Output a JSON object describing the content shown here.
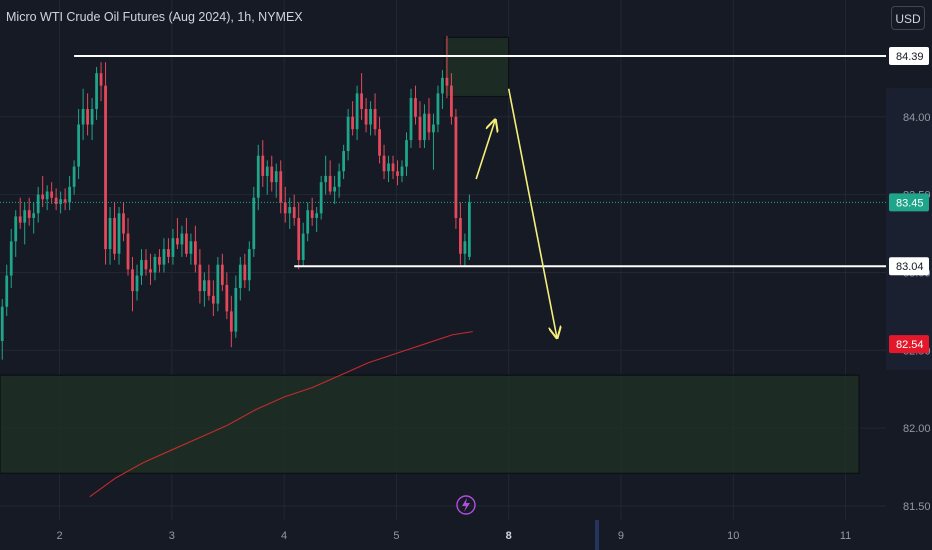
{
  "title": "Micro WTI Crude Oil Futures (Aug 2024), 1h, NYMEX",
  "currency_button": "USD",
  "chart_data": {
    "type": "candlestick",
    "x_ticks": [
      {
        "label": "2",
        "day": 2,
        "bold": false
      },
      {
        "label": "3",
        "day": 3,
        "bold": false
      },
      {
        "label": "4",
        "day": 4,
        "bold": false
      },
      {
        "label": "5",
        "day": 5,
        "bold": false
      },
      {
        "label": "8",
        "day": 6,
        "bold": true
      },
      {
        "label": "9",
        "day": 7,
        "bold": false
      },
      {
        "label": "10",
        "day": 8,
        "bold": false
      },
      {
        "label": "11",
        "day": 9,
        "bold": false
      }
    ],
    "y_ticks": [
      84.0,
      83.5,
      83.0,
      82.5,
      82.0,
      81.5
    ],
    "ylim": [
      81.41,
      84.75
    ],
    "xlim": [
      1.47,
      9.36
    ],
    "price_labels": [
      {
        "value": 84.39,
        "text": "84.39",
        "style": "white"
      },
      {
        "value": 83.45,
        "text": "83.45",
        "style": "green"
      },
      {
        "value": 83.04,
        "text": "83.04",
        "style": "white"
      },
      {
        "value": 82.54,
        "text": "82.54",
        "style": "red"
      }
    ],
    "horizontal_levels": [
      {
        "value": 84.39,
        "x_start": 2.13,
        "x_end": 9.36
      },
      {
        "value": 83.04,
        "x_start": 4.09,
        "x_end": 9.36
      }
    ],
    "zones": [
      {
        "x_start": 5.43,
        "x_end": 6.0,
        "y_low": 84.13,
        "y_high": 84.51
      },
      {
        "x_start": 1.47,
        "x_end": 9.12,
        "y_low": 81.71,
        "y_high": 82.34
      }
    ],
    "moving_average": [
      [
        2.27,
        81.56
      ],
      [
        2.5,
        81.68
      ],
      [
        2.75,
        81.78
      ],
      [
        3.0,
        81.86
      ],
      [
        3.25,
        81.94
      ],
      [
        3.5,
        82.02
      ],
      [
        3.75,
        82.12
      ],
      [
        4.0,
        82.2
      ],
      [
        4.25,
        82.26
      ],
      [
        4.5,
        82.34
      ],
      [
        4.75,
        82.42
      ],
      [
        5.0,
        82.48
      ],
      [
        5.25,
        82.54
      ],
      [
        5.5,
        82.6
      ],
      [
        5.68,
        82.62
      ]
    ],
    "candles": [
      [
        1.49,
        82.56,
        82.83,
        82.44,
        82.78
      ],
      [
        1.53,
        82.78,
        83.05,
        82.72,
        82.98
      ],
      [
        1.57,
        82.98,
        83.28,
        82.9,
        83.2
      ],
      [
        1.61,
        83.2,
        83.4,
        83.1,
        83.36
      ],
      [
        1.65,
        83.36,
        83.48,
        83.28,
        83.32
      ],
      [
        1.69,
        83.32,
        83.45,
        83.18,
        83.4
      ],
      [
        1.73,
        83.4,
        83.48,
        83.3,
        83.35
      ],
      [
        1.77,
        83.35,
        83.45,
        83.25,
        83.38
      ],
      [
        1.81,
        83.38,
        83.55,
        83.32,
        83.5
      ],
      [
        1.85,
        83.5,
        83.62,
        83.42,
        83.47
      ],
      [
        1.89,
        83.47,
        83.56,
        83.4,
        83.52
      ],
      [
        1.93,
        83.52,
        83.58,
        83.44,
        83.48
      ],
      [
        1.97,
        83.48,
        83.54,
        83.4,
        83.44
      ],
      [
        2.01,
        83.44,
        83.52,
        83.38,
        83.47
      ],
      [
        2.05,
        83.47,
        83.54,
        83.4,
        83.45
      ],
      [
        2.09,
        83.45,
        83.62,
        83.4,
        83.55
      ],
      [
        2.13,
        83.55,
        83.72,
        83.5,
        83.68
      ],
      [
        2.17,
        83.68,
        84.05,
        83.6,
        83.95
      ],
      [
        2.21,
        83.95,
        84.18,
        83.85,
        84.05
      ],
      [
        2.25,
        84.05,
        84.15,
        83.88,
        83.95
      ],
      [
        2.29,
        83.95,
        84.12,
        83.85,
        84.05
      ],
      [
        2.33,
        84.05,
        84.32,
        83.98,
        84.28
      ],
      [
        2.37,
        84.28,
        84.35,
        84.1,
        84.2
      ],
      [
        2.41,
        84.2,
        84.35,
        83.05,
        83.15
      ],
      [
        2.45,
        83.15,
        83.42,
        83.05,
        83.35
      ],
      [
        2.49,
        83.35,
        83.45,
        83.08,
        83.12
      ],
      [
        2.53,
        83.12,
        83.42,
        83.05,
        83.38
      ],
      [
        2.57,
        83.38,
        83.45,
        83.2,
        83.25
      ],
      [
        2.61,
        83.25,
        83.35,
        82.98,
        83.02
      ],
      [
        2.65,
        83.02,
        83.1,
        82.75,
        82.88
      ],
      [
        2.69,
        82.88,
        83.05,
        82.82,
        82.98
      ],
      [
        2.73,
        82.98,
        83.15,
        82.92,
        83.08
      ],
      [
        2.77,
        83.08,
        83.15,
        82.98,
        83.02
      ],
      [
        2.81,
        83.02,
        83.12,
        82.92,
        83.0
      ],
      [
        2.85,
        83.0,
        83.12,
        82.95,
        83.1
      ],
      [
        2.89,
        83.1,
        83.15,
        83.0,
        83.05
      ],
      [
        2.93,
        83.05,
        83.22,
        83.0,
        83.15
      ],
      [
        2.97,
        83.15,
        83.22,
        83.06,
        83.1
      ],
      [
        3.01,
        83.1,
        83.28,
        83.05,
        83.22
      ],
      [
        3.05,
        83.22,
        83.35,
        83.15,
        83.18
      ],
      [
        3.09,
        83.18,
        83.3,
        83.1,
        83.25
      ],
      [
        3.13,
        83.25,
        83.35,
        83.1,
        83.12
      ],
      [
        3.17,
        83.12,
        83.25,
        83.05,
        83.2
      ],
      [
        3.21,
        83.2,
        83.3,
        83.0,
        83.05
      ],
      [
        3.25,
        83.05,
        83.15,
        82.8,
        82.88
      ],
      [
        3.29,
        82.88,
        83.0,
        82.78,
        82.95
      ],
      [
        3.33,
        82.95,
        83.05,
        82.82,
        82.85
      ],
      [
        3.37,
        82.85,
        82.95,
        82.72,
        82.8
      ],
      [
        3.41,
        82.8,
        83.1,
        82.75,
        83.05
      ],
      [
        3.45,
        83.05,
        83.12,
        82.88,
        82.92
      ],
      [
        3.49,
        82.92,
        83.0,
        82.7,
        82.75
      ],
      [
        3.53,
        82.75,
        82.85,
        82.52,
        82.62
      ],
      [
        3.57,
        82.62,
        82.98,
        82.58,
        82.9
      ],
      [
        3.61,
        82.9,
        83.1,
        82.82,
        83.05
      ],
      [
        3.65,
        83.05,
        83.12,
        82.9,
        82.95
      ],
      [
        3.69,
        82.95,
        83.2,
        82.88,
        83.15
      ],
      [
        3.73,
        83.15,
        83.55,
        83.1,
        83.48
      ],
      [
        3.77,
        83.48,
        83.82,
        83.4,
        83.75
      ],
      [
        3.81,
        83.75,
        83.85,
        83.55,
        83.62
      ],
      [
        3.85,
        83.62,
        83.72,
        83.5,
        83.68
      ],
      [
        3.89,
        83.68,
        83.75,
        83.52,
        83.58
      ],
      [
        3.93,
        83.58,
        83.7,
        83.48,
        83.65
      ],
      [
        3.97,
        83.65,
        83.72,
        83.38,
        83.45
      ],
      [
        4.01,
        83.45,
        83.55,
        83.32,
        83.38
      ],
      [
        4.05,
        83.38,
        83.48,
        83.28,
        83.42
      ],
      [
        4.09,
        83.42,
        83.5,
        83.3,
        83.35
      ],
      [
        4.13,
        83.35,
        83.45,
        83.02,
        83.08
      ],
      [
        4.17,
        83.08,
        83.32,
        83.04,
        83.25
      ],
      [
        4.21,
        83.25,
        83.45,
        83.2,
        83.4
      ],
      [
        4.25,
        83.4,
        83.48,
        83.3,
        83.35
      ],
      [
        4.29,
        83.35,
        83.42,
        83.26,
        83.38
      ],
      [
        4.33,
        83.38,
        83.62,
        83.34,
        83.58
      ],
      [
        4.37,
        83.58,
        83.75,
        83.5,
        83.62
      ],
      [
        4.41,
        83.62,
        83.72,
        83.5,
        83.52
      ],
      [
        4.45,
        83.52,
        83.62,
        83.44,
        83.55
      ],
      [
        4.49,
        83.55,
        83.7,
        83.48,
        83.65
      ],
      [
        4.53,
        83.65,
        83.82,
        83.6,
        83.78
      ],
      [
        4.57,
        83.78,
        84.05,
        83.72,
        84.0
      ],
      [
        4.61,
        84.0,
        84.1,
        83.88,
        83.92
      ],
      [
        4.65,
        83.92,
        84.2,
        83.85,
        84.15
      ],
      [
        4.69,
        84.15,
        84.28,
        83.98,
        84.05
      ],
      [
        4.73,
        84.05,
        84.12,
        83.9,
        83.95
      ],
      [
        4.77,
        83.95,
        84.1,
        83.88,
        84.05
      ],
      [
        4.81,
        84.05,
        84.15,
        83.88,
        83.92
      ],
      [
        4.85,
        83.92,
        84.0,
        83.7,
        83.75
      ],
      [
        4.89,
        83.75,
        83.82,
        83.6,
        83.65
      ],
      [
        4.93,
        83.65,
        83.75,
        83.58,
        83.7
      ],
      [
        4.97,
        83.7,
        83.75,
        83.6,
        83.65
      ],
      [
        5.01,
        83.65,
        83.72,
        83.56,
        83.62
      ],
      [
        5.05,
        83.62,
        83.72,
        83.58,
        83.68
      ],
      [
        5.09,
        83.68,
        83.9,
        83.62,
        83.85
      ],
      [
        5.13,
        83.85,
        84.18,
        83.8,
        84.12
      ],
      [
        5.17,
        84.12,
        84.2,
        83.95,
        84.0
      ],
      [
        5.21,
        84.0,
        84.1,
        83.8,
        83.85
      ],
      [
        5.25,
        83.85,
        84.08,
        83.8,
        84.02
      ],
      [
        5.29,
        84.02,
        84.12,
        83.85,
        83.9
      ],
      [
        5.33,
        83.9,
        84.02,
        83.66,
        83.95
      ],
      [
        5.37,
        83.95,
        84.2,
        83.9,
        84.15
      ],
      [
        5.41,
        84.15,
        84.3,
        84.05,
        84.25
      ],
      [
        5.45,
        84.25,
        84.52,
        84.12,
        84.2
      ],
      [
        5.49,
        84.2,
        84.28,
        83.95,
        84.0
      ],
      [
        5.53,
        84.0,
        84.05,
        83.28,
        83.35
      ],
      [
        5.57,
        83.35,
        83.45,
        83.05,
        83.12
      ],
      [
        5.61,
        83.12,
        83.25,
        83.04,
        83.2
      ],
      [
        5.65,
        83.1,
        83.5,
        83.08,
        83.45
      ]
    ],
    "annotations": [
      {
        "type": "arrow",
        "color": "#f5ef7a",
        "from": [
          5.71,
          83.6
        ],
        "to": [
          5.88,
          83.98
        ]
      },
      {
        "type": "arrow",
        "color": "#f5ef7a",
        "from": [
          6.0,
          84.18
        ],
        "to": [
          6.43,
          82.58
        ]
      }
    ]
  }
}
